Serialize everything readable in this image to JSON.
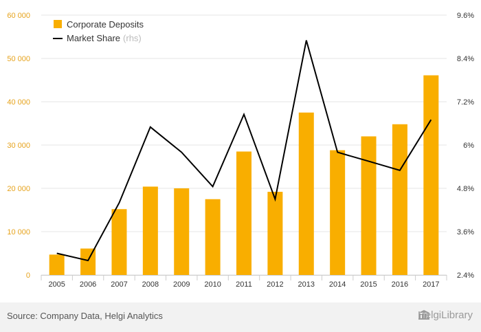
{
  "colors": {
    "bar": "#F9AE00",
    "line": "#000000",
    "left_axis_text": "#E6A21A",
    "right_axis_text": "#333333",
    "grid": "#e6e6e6",
    "footer_bg": "#f2f2f2"
  },
  "chart_data": {
    "type": "bar",
    "title": "",
    "categories": [
      "2005",
      "2006",
      "2007",
      "2008",
      "2009",
      "2010",
      "2011",
      "2012",
      "2013",
      "2014",
      "2015",
      "2016",
      "2017"
    ],
    "series": [
      {
        "name": "Corporate Deposits",
        "type": "bar",
        "axis": "left",
        "values": [
          4700,
          6100,
          15200,
          20400,
          20000,
          17500,
          28500,
          19200,
          37500,
          28800,
          32000,
          34800,
          46100
        ]
      },
      {
        "name": "Market Share",
        "type": "line",
        "axis": "right",
        "values": [
          3.0,
          2.8,
          4.4,
          6.5,
          5.8,
          4.85,
          6.85,
          4.5,
          8.9,
          5.8,
          5.55,
          5.3,
          6.7
        ]
      }
    ],
    "y_left": {
      "min": 0,
      "max": 60000,
      "ticks": [
        "0",
        "10 000",
        "20 000",
        "30 000",
        "40 000",
        "50 000",
        "60 000"
      ]
    },
    "y_right": {
      "min": 2.4,
      "max": 9.6,
      "ticks": [
        "2.4%",
        "3.6%",
        "4.8%",
        "6%",
        "7.2%",
        "8.4%",
        "9.6%"
      ]
    },
    "legend": {
      "position": "top-left",
      "items": [
        {
          "label": "Corporate Deposits",
          "suffix": ""
        },
        {
          "label": "Market Share",
          "suffix": "(rhs)"
        }
      ]
    },
    "grid": true
  },
  "footer": {
    "source": "Source: Company Data, Helgi Analytics",
    "logo_text": "HelgiLibrary"
  }
}
